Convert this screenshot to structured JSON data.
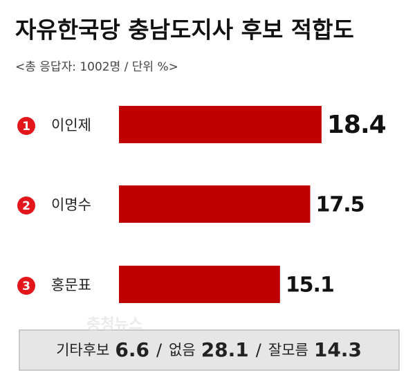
{
  "chart_data": {
    "type": "bar",
    "orientation": "horizontal",
    "title": "자유한국당 충남도지사 후보 적합도",
    "subtitle": "<총 응답자: 1002명 / 단위 %>",
    "ranks": [
      "1",
      "2",
      "3"
    ],
    "categories": [
      "이인제",
      "이명수",
      "홍문표"
    ],
    "values": [
      18.4,
      17.5,
      15.1
    ],
    "color": "#c00000",
    "rank_color": "#e3161b",
    "other_responses": [
      {
        "label": "기타후보",
        "value": 6.6
      },
      {
        "label": "없음",
        "value": 28.1
      },
      {
        "label": "잘모름",
        "value": 14.3
      }
    ],
    "separator": "/",
    "watermark": "충청뉴스"
  }
}
